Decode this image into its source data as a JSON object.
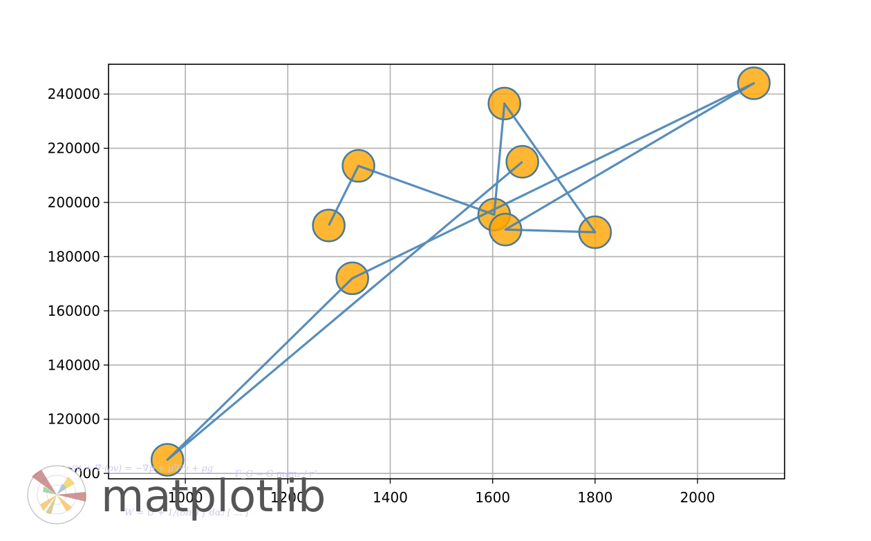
{
  "chart_data": {
    "type": "line",
    "title": "",
    "xlabel": "",
    "ylabel": "",
    "xlim": [
      850,
      2170
    ],
    "ylim": [
      98000,
      251000
    ],
    "xticks": [
      1000,
      1200,
      1400,
      1600,
      1800,
      2000
    ],
    "yticks": [
      100000,
      120000,
      140000,
      160000,
      180000,
      200000,
      220000,
      240000
    ],
    "grid": true,
    "legend": "none",
    "series": [
      {
        "line_color": "#4682b4",
        "marker_color": "#ffa500",
        "marker_edge_color": "#4a7a96",
        "x": [
          1280,
          1338,
          1603,
          1623,
          1800,
          1625,
          2110,
          1326,
          965,
          1658
        ],
        "y": [
          191500,
          213500,
          195500,
          236500,
          189000,
          190000,
          244000,
          172000,
          105000,
          215000
        ]
      }
    ]
  },
  "watermark": {
    "word": "matplotlib",
    "formula_top": "∂ρ/∂t + ∇·(ρv) = −∇p + μ∇²v + ρg",
    "formula_mid": "F_G = G m₁m₂ / r²",
    "formula_bottom": "W = U + 1/(8π²) ∫ dα₂ [ ... ]"
  }
}
